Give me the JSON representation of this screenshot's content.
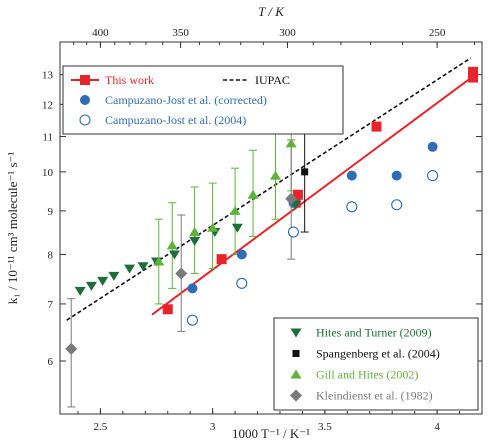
{
  "chart_data": {
    "type": "scatter",
    "xlabel": "1000 T⁻¹ / K⁻¹",
    "x2label": "T / K",
    "ylabel": "k₁ / 10⁻¹¹ cm³ molecule⁻¹ s⁻¹",
    "xlim": [
      2.32,
      4.2
    ],
    "ylim": [
      5.2,
      14.2
    ],
    "y_scale": "log",
    "xticks": [
      2.5,
      3.0,
      3.5,
      4.0
    ],
    "xtick_labels": [
      "2.5",
      "3",
      "3.5",
      "4"
    ],
    "yticks": [
      6,
      7,
      8,
      9,
      10,
      11,
      12,
      13
    ],
    "ytick_labels": [
      "6",
      "7",
      "8",
      "9",
      "10",
      "11",
      "12",
      "13"
    ],
    "x2ticks": [
      400,
      350,
      300,
      250
    ],
    "x2tick_labels": [
      "400",
      "350",
      "300",
      "250"
    ],
    "legend_top": [
      {
        "label": "This work",
        "color": "#e8242a",
        "marker": "square-line"
      },
      {
        "label": "IUPAC",
        "color": "#111111",
        "marker": "dashed-line"
      },
      {
        "label": "Campuzano-Jost et al. (corrected)",
        "color": "#2f6db5",
        "marker": "circle-filled"
      },
      {
        "label": "Campuzano-Jost et al. (2004)",
        "color": "#2f6db5",
        "marker": "circle-open"
      }
    ],
    "legend_bottom": [
      {
        "label": "Hites and Turner (2009)",
        "color": "#1c6e3a",
        "marker": "triangle-down"
      },
      {
        "label": "Spangenberg et al. (2004)",
        "color": "#111111",
        "marker": "square-small"
      },
      {
        "label": "Gill and Hites (2002)",
        "color": "#5fb33a",
        "marker": "triangle-up"
      },
      {
        "label": "Kleindienst et al. (1982)",
        "color": "#7a7a7a",
        "marker": "diamond"
      }
    ],
    "series": [
      {
        "name": "This work",
        "marker": "square",
        "color": "#e8242a",
        "points": [
          [
            2.8,
            6.9
          ],
          [
            3.04,
            7.9
          ],
          [
            3.37,
            9.2
          ],
          [
            3.38,
            9.4
          ],
          [
            3.73,
            11.3
          ],
          [
            4.16,
            12.9
          ],
          [
            4.16,
            13.1
          ]
        ]
      },
      {
        "name": "This work fit",
        "marker": "line",
        "color": "#e8242a",
        "points": [
          [
            2.73,
            6.8
          ],
          [
            4.17,
            13.0
          ]
        ]
      },
      {
        "name": "IUPAC",
        "marker": "dashed-line",
        "color": "#111111",
        "points": [
          [
            2.35,
            6.7
          ],
          [
            4.15,
            13.6
          ]
        ]
      },
      {
        "name": "Campuzano-Jost et al. (corrected)",
        "marker": "circle-filled",
        "color": "#2f6db5",
        "points": [
          [
            2.91,
            7.3
          ],
          [
            3.13,
            8.0
          ],
          [
            3.36,
            9.2
          ],
          [
            3.62,
            9.9
          ],
          [
            3.82,
            9.9
          ],
          [
            3.98,
            10.7
          ]
        ]
      },
      {
        "name": "Campuzano-Jost et al. (2004)",
        "marker": "circle-open",
        "color": "#2f6db5",
        "points": [
          [
            2.91,
            6.7
          ],
          [
            3.13,
            7.4
          ],
          [
            3.36,
            8.5
          ],
          [
            3.62,
            9.1
          ],
          [
            3.82,
            9.15
          ],
          [
            3.98,
            9.9
          ]
        ]
      },
      {
        "name": "Hites and Turner (2009)",
        "marker": "triangle-down",
        "color": "#1c6e3a",
        "points": [
          [
            2.41,
            7.25
          ],
          [
            2.46,
            7.35
          ],
          [
            2.51,
            7.45
          ],
          [
            2.56,
            7.55
          ],
          [
            2.63,
            7.7
          ],
          [
            2.69,
            7.75
          ],
          [
            2.75,
            7.85
          ],
          [
            2.83,
            8.0
          ],
          [
            2.92,
            8.3
          ],
          [
            3.01,
            8.5
          ],
          [
            3.11,
            8.6
          ],
          [
            3.37,
            9.15
          ]
        ]
      },
      {
        "name": "Spangenberg et al. (2004)",
        "marker": "square-small",
        "color": "#111111",
        "points": [
          [
            3.41,
            10.0
          ]
        ],
        "err": [
          [
            8.5,
            11.3
          ]
        ]
      },
      {
        "name": "Gill and Hites (2002)",
        "marker": "triangle-up",
        "color": "#5fb33a",
        "points": [
          [
            2.76,
            7.85
          ],
          [
            2.82,
            8.2
          ],
          [
            2.92,
            8.5
          ],
          [
            3.0,
            8.6
          ],
          [
            3.1,
            9.0
          ],
          [
            3.18,
            9.4
          ],
          [
            3.28,
            9.9
          ],
          [
            3.35,
            10.8
          ]
        ],
        "err": [
          [
            7.0,
            8.8
          ],
          [
            7.3,
            9.2
          ],
          [
            7.6,
            9.6
          ],
          [
            7.7,
            9.7
          ],
          [
            8.0,
            10.1
          ],
          [
            8.4,
            10.6
          ],
          [
            8.8,
            11.1
          ],
          [
            9.5,
            12.1
          ]
        ]
      },
      {
        "name": "Kleindienst et al. (1982)",
        "marker": "diamond",
        "color": "#7a7a7a",
        "points": [
          [
            2.37,
            6.2
          ],
          [
            2.86,
            7.6
          ],
          [
            3.35,
            9.3
          ]
        ],
        "err": [
          [
            5.3,
            7.1
          ],
          [
            6.5,
            8.9
          ],
          [
            7.9,
            10.9
          ]
        ]
      }
    ]
  }
}
